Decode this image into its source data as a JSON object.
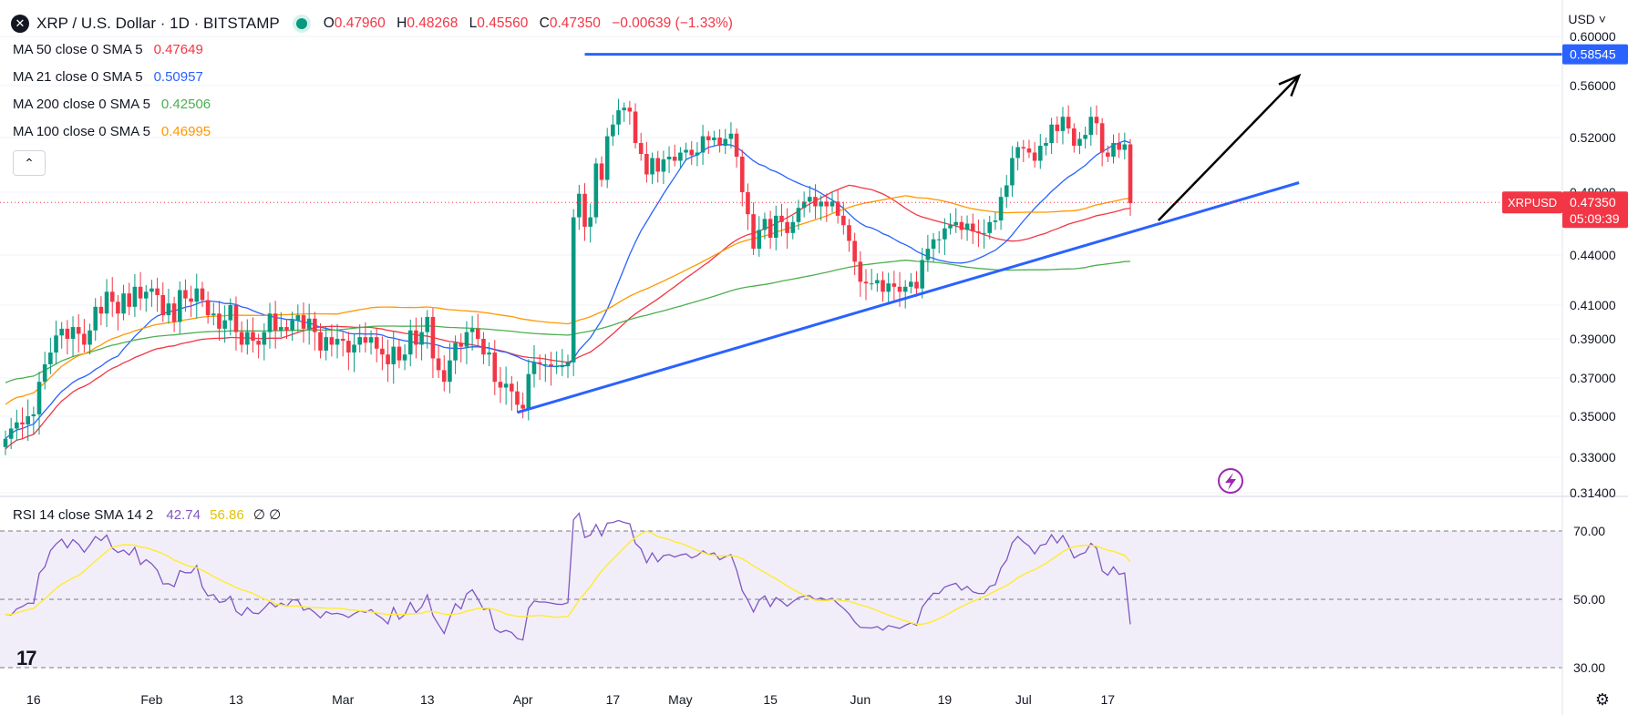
{
  "header": {
    "symbol_title": "XRP / U.S. Dollar · 1D · BITSTAMP",
    "logo_glyph": "✕",
    "open_label": "O",
    "open": "0.47960",
    "high_label": "H",
    "high": "0.48268",
    "low_label": "L",
    "low": "0.45560",
    "close_label": "C",
    "close": "0.47350",
    "change": "−0.00639 (−1.33%)",
    "currency": "USD"
  },
  "legend": [
    {
      "label": "MA 50 close 0 SMA 5",
      "value": "0.47649",
      "color": "#f23645"
    },
    {
      "label": "MA 21 close 0 SMA 5",
      "value": "0.50957",
      "color": "#2962ff"
    },
    {
      "label": "MA 200 close 0 SMA 5",
      "value": "0.42506",
      "color": "#4caf50"
    },
    {
      "label": "MA 100 close 0 SMA 5",
      "value": "0.46995",
      "color": "#ff9800"
    }
  ],
  "collapse_glyph": "⌃",
  "price_tag": {
    "symbol": "XRPUSD",
    "price": "0.47350",
    "countdown": "05:09:39",
    "color": "#f23645"
  },
  "resistance_tag": "0.58545",
  "rsi_legend": {
    "label": "RSI 14 close SMA 14 2",
    "rsi": "42.74",
    "sma": "56.86",
    "extra": "∅ ∅"
  },
  "tv_logo": "17",
  "chart_data": {
    "type": "candlestick",
    "title": "XRP / U.S. Dollar · 1D · BITSTAMP",
    "ylim": [
      0.314,
      0.6
    ],
    "y_ticks": [
      "0.60000",
      "0.56000",
      "0.52000",
      "0.48000",
      "0.44000",
      "0.41000",
      "0.39000",
      "0.37000",
      "0.35000",
      "0.33000",
      "0.31400"
    ],
    "x_ticks": [
      "16",
      "Feb",
      "13",
      "Mar",
      "13",
      "Apr",
      "17",
      "May",
      "15",
      "Jun",
      "19",
      "Jul",
      "17"
    ],
    "colors": {
      "up": "#089981",
      "down": "#f23645"
    },
    "closes": [
      0.339,
      0.344,
      0.347,
      0.346,
      0.35,
      0.351,
      0.368,
      0.377,
      0.383,
      0.392,
      0.396,
      0.39,
      0.397,
      0.393,
      0.387,
      0.395,
      0.409,
      0.405,
      0.418,
      0.412,
      0.405,
      0.417,
      0.409,
      0.421,
      0.414,
      0.418,
      0.42,
      0.416,
      0.404,
      0.411,
      0.4,
      0.419,
      0.414,
      0.412,
      0.42,
      0.413,
      0.404,
      0.405,
      0.396,
      0.401,
      0.41,
      0.394,
      0.387,
      0.394,
      0.389,
      0.387,
      0.394,
      0.405,
      0.395,
      0.397,
      0.395,
      0.401,
      0.404,
      0.396,
      0.402,
      0.394,
      0.384,
      0.391,
      0.387,
      0.39,
      0.389,
      0.383,
      0.387,
      0.391,
      0.388,
      0.391,
      0.385,
      0.382,
      0.377,
      0.386,
      0.379,
      0.382,
      0.395,
      0.387,
      0.394,
      0.403,
      0.38,
      0.374,
      0.368,
      0.379,
      0.388,
      0.386,
      0.394,
      0.396,
      0.39,
      0.382,
      0.383,
      0.368,
      0.365,
      0.367,
      0.363,
      0.356,
      0.354,
      0.372,
      0.378,
      0.377,
      0.377,
      0.376,
      0.376,
      0.376,
      0.378,
      0.464,
      0.479,
      0.458,
      0.464,
      0.501,
      0.489,
      0.521,
      0.53,
      0.541,
      0.543,
      0.54,
      0.516,
      0.508,
      0.493,
      0.505,
      0.495,
      0.504,
      0.506,
      0.503,
      0.509,
      0.511,
      0.507,
      0.509,
      0.521,
      0.518,
      0.52,
      0.514,
      0.519,
      0.523,
      0.506,
      0.48,
      0.466,
      0.444,
      0.456,
      0.463,
      0.451,
      0.465,
      0.461,
      0.454,
      0.461,
      0.47,
      0.474,
      0.477,
      0.471,
      0.474,
      0.471,
      0.474,
      0.465,
      0.459,
      0.449,
      0.436,
      0.424,
      0.423,
      0.423,
      0.425,
      0.418,
      0.423,
      0.421,
      0.418,
      0.421,
      0.424,
      0.42,
      0.437,
      0.444,
      0.45,
      0.45,
      0.457,
      0.459,
      0.461,
      0.456,
      0.46,
      0.455,
      0.454,
      0.454,
      0.461,
      0.462,
      0.477,
      0.485,
      0.505,
      0.513,
      0.512,
      0.509,
      0.503,
      0.514,
      0.516,
      0.53,
      0.525,
      0.536,
      0.527,
      0.514,
      0.519,
      0.522,
      0.536,
      0.531,
      0.509,
      0.506,
      0.516,
      0.511,
      0.515,
      0.473
    ],
    "rsi": [
      45.6,
      45.4,
      47.2,
      47.9,
      48.9,
      48.8,
      57.6,
      59.5,
      64.3,
      66.2,
      67.6,
      65.1,
      67.5,
      66.1,
      63.8,
      65.9,
      68.4,
      67.2,
      68.8,
      65.0,
      63.7,
      64.4,
      63.0,
      65.2,
      60.2,
      61.6,
      60.4,
      58.5,
      54.5,
      54.6,
      53.7,
      58.4,
      57.8,
      57.8,
      59.9,
      53.6,
      51.0,
      51.4,
      49.1,
      49.4,
      50.9,
      46.5,
      45.3,
      47.6,
      46.0,
      45.8,
      47.4,
      49.2,
      47.8,
      48.9,
      48.0,
      49.9,
      49.7,
      46.8,
      47.4,
      46.1,
      44.6,
      46.4,
      45.7,
      45.9,
      45.5,
      44.7,
      45.8,
      46.6,
      46.2,
      47.0,
      45.5,
      44.4,
      42.8,
      47.6,
      44.2,
      45.5,
      49.1,
      46.1,
      47.8,
      51.3,
      45.3,
      42.6,
      40.0,
      44.6,
      48.7,
      47.2,
      51.6,
      52.8,
      50.1,
      47.0,
      47.4,
      41.3,
      40.3,
      40.9,
      40.3,
      38.5,
      38.1,
      47.4,
      49.5,
      49.2,
      49.2,
      48.9,
      48.6,
      48.5,
      49.0,
      73.3,
      75.2,
      68.1,
      68.8,
      71.9,
      68.6,
      72.3,
      72.5,
      73.1,
      72.5,
      72.1,
      66.4,
      64.8,
      60.7,
      63.6,
      61.0,
      62.8,
      63.1,
      62.4,
      63.0,
      63.3,
      62.1,
      62.8,
      64.2,
      63.1,
      63.6,
      61.6,
      62.5,
      63.1,
      58.6,
      52.5,
      49.8,
      46.3,
      49.7,
      51.0,
      47.9,
      50.5,
      49.4,
      48.0,
      49.3,
      50.5,
      50.9,
      51.1,
      49.8,
      50.4,
      49.8,
      50.3,
      48.7,
      47.4,
      45.7,
      43.4,
      41.8,
      41.7,
      41.6,
      42.0,
      41.0,
      42.3,
      41.9,
      41.5,
      42.4,
      43.1,
      42.4,
      47.7,
      49.9,
      51.8,
      51.7,
      53.6,
      54.2,
      54.7,
      52.7,
      53.8,
      52.2,
      51.7,
      51.7,
      53.8,
      54.3,
      59.2,
      61.5,
      66.5,
      68.4,
      66.8,
      65.6,
      63.3,
      65.8,
      66.2,
      68.9,
      66.5,
      68.7,
      65.8,
      62.1,
      63.1,
      63.7,
      66.4,
      65.0,
      58.3,
      57.1,
      59.5,
      57.3,
      57.7,
      42.7
    ],
    "ma_lines": [
      "MA 50",
      "MA 21",
      "MA 200",
      "MA 100"
    ],
    "support_line": {
      "from_index": 91,
      "from_value": 0.352,
      "to_index": 230,
      "to_value": 0.487
    },
    "resistance_line": {
      "from_index": 103,
      "to_index": 232,
      "value": 0.58545
    },
    "rsi_levels": [
      70,
      50,
      30
    ],
    "rsi_ticks": [
      "70.00",
      "50.00",
      "30.00"
    ]
  }
}
